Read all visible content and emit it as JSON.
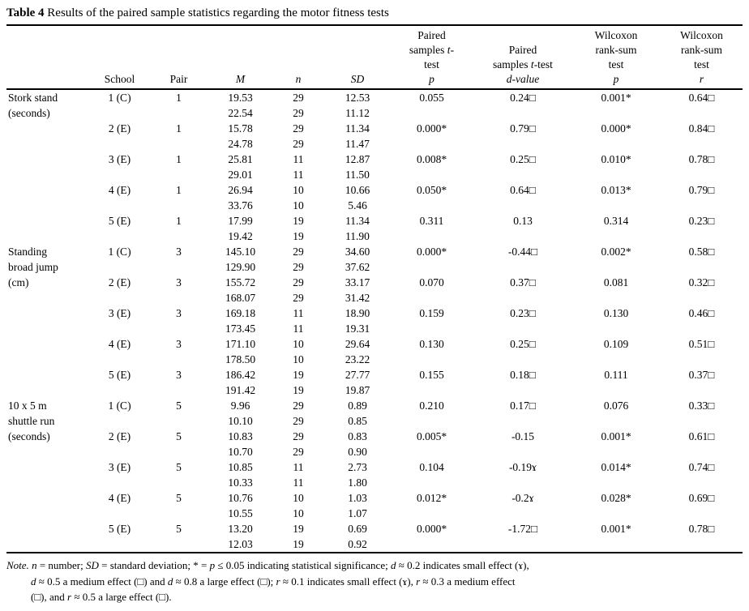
{
  "title": {
    "bold": "Table 4",
    "rest": " Results of the paired sample statistics regarding the motor fitness tests"
  },
  "table": {
    "columns": [
      {
        "key": "test",
        "top": [],
        "sub": [
          ""
        ]
      },
      {
        "key": "school",
        "top": [],
        "sub": [
          "School"
        ]
      },
      {
        "key": "pair",
        "top": [],
        "sub": [
          "Pair"
        ]
      },
      {
        "key": "m",
        "top": [],
        "sub": [
          {
            "i": "M"
          }
        ]
      },
      {
        "key": "n",
        "top": [],
        "sub": [
          {
            "i": "n"
          }
        ]
      },
      {
        "key": "sd",
        "top": [],
        "sub": [
          {
            "i": "SD"
          }
        ]
      },
      {
        "key": "paired-p",
        "top": [
          [
            "Paired"
          ],
          [
            "samples ",
            {
              "i": "t"
            },
            "-"
          ],
          [
            "test"
          ]
        ],
        "sub": [
          {
            "i": "p"
          }
        ]
      },
      {
        "key": "d-value",
        "top": [
          [
            "Paired"
          ],
          [
            "samples ",
            {
              "i": "t"
            },
            "-test"
          ]
        ],
        "sub": [
          {
            "i": "d-value"
          }
        ]
      },
      {
        "key": "wilcoxon-p",
        "top": [
          [
            "Wilcoxon"
          ],
          [
            "rank-sum"
          ],
          [
            "test"
          ]
        ],
        "sub": [
          {
            "i": "p"
          }
        ]
      },
      {
        "key": "wilcoxon-r",
        "top": [
          [
            "Wilcoxon"
          ],
          [
            "rank-sum"
          ],
          [
            "test"
          ]
        ],
        "sub": [
          {
            "i": "r"
          }
        ]
      }
    ],
    "sections": [
      {
        "test_lines": [
          "Stork stand",
          "(seconds)"
        ],
        "groups": [
          {
            "school": "1 (C)",
            "pair": "1",
            "rows": [
              [
                "19.53",
                "29",
                "12.53"
              ],
              [
                "22.54",
                "29",
                "11.12"
              ]
            ],
            "paired_p": "0.055",
            "d_value": "0.24□",
            "wilcoxon_p": "0.001*",
            "wilcoxon_r": "0.64□"
          },
          {
            "school": "2 (E)",
            "pair": "1",
            "rows": [
              [
                "15.78",
                "29",
                "11.34"
              ],
              [
                "24.78",
                "29",
                "11.47"
              ]
            ],
            "paired_p": "0.000*",
            "d_value": "0.79□",
            "wilcoxon_p": "0.000*",
            "wilcoxon_r": "0.84□"
          },
          {
            "school": "3 (E)",
            "pair": "1",
            "rows": [
              [
                "25.81",
                "11",
                "12.87"
              ],
              [
                "29.01",
                "11",
                "11.50"
              ]
            ],
            "paired_p": "0.008*",
            "d_value": "0.25□",
            "wilcoxon_p": "0.010*",
            "wilcoxon_r": "0.78□"
          },
          {
            "school": "4 (E)",
            "pair": "1",
            "rows": [
              [
                "26.94",
                "10",
                "10.66"
              ],
              [
                "33.76",
                "10",
                "5.46"
              ]
            ],
            "paired_p": "0.050*",
            "d_value": "0.64□",
            "wilcoxon_p": "0.013*",
            "wilcoxon_r": "0.79□"
          },
          {
            "school": "5 (E)",
            "pair": "1",
            "rows": [
              [
                "17.99",
                "19",
                "11.34"
              ],
              [
                "19.42",
                "19",
                "11.90"
              ]
            ],
            "paired_p": "0.311",
            "d_value": "0.13",
            "wilcoxon_p": "0.314",
            "wilcoxon_r": "0.23□"
          }
        ]
      },
      {
        "test_lines": [
          "Standing",
          "broad jump",
          "(cm)"
        ],
        "groups": [
          {
            "school": "1 (C)",
            "pair": "3",
            "rows": [
              [
                "145.10",
                "29",
                "34.60"
              ],
              [
                "129.90",
                "29",
                "37.62"
              ]
            ],
            "paired_p": "0.000*",
            "d_value": "-0.44□",
            "wilcoxon_p": "0.002*",
            "wilcoxon_r": "0.58□"
          },
          {
            "school": "2 (E)",
            "pair": "3",
            "rows": [
              [
                "155.72",
                "29",
                "33.17"
              ],
              [
                "168.07",
                "29",
                "31.42"
              ]
            ],
            "paired_p": "0.070",
            "d_value": "0.37□",
            "wilcoxon_p": "0.081",
            "wilcoxon_r": "0.32□"
          },
          {
            "school": "3 (E)",
            "pair": "3",
            "rows": [
              [
                "169.18",
                "11",
                "18.90"
              ],
              [
                "173.45",
                "11",
                "19.31"
              ]
            ],
            "paired_p": "0.159",
            "d_value": "0.23□",
            "wilcoxon_p": "0.130",
            "wilcoxon_r": "0.46□"
          },
          {
            "school": "4 (E)",
            "pair": "3",
            "rows": [
              [
                "171.10",
                "10",
                "29.64"
              ],
              [
                "178.50",
                "10",
                "23.22"
              ]
            ],
            "paired_p": "0.130",
            "d_value": "0.25□",
            "wilcoxon_p": "0.109",
            "wilcoxon_r": "0.51□"
          },
          {
            "school": "5 (E)",
            "pair": "3",
            "rows": [
              [
                "186.42",
                "19",
                "27.77"
              ],
              [
                "191.42",
                "19",
                "19.87"
              ]
            ],
            "paired_p": "0.155",
            "d_value": "0.18□",
            "wilcoxon_p": "0.111",
            "wilcoxon_r": "0.37□"
          }
        ]
      },
      {
        "test_lines": [
          "10 x 5 m",
          "shuttle run",
          "(seconds)"
        ],
        "groups": [
          {
            "school": "1 (C)",
            "pair": "5",
            "rows": [
              [
                "9.96",
                "29",
                "0.89"
              ],
              [
                "10.10",
                "29",
                "0.85"
              ]
            ],
            "paired_p": "0.210",
            "d_value": "0.17□",
            "wilcoxon_p": "0.076",
            "wilcoxon_r": "0.33□"
          },
          {
            "school": "2 (E)",
            "pair": "5",
            "rows": [
              [
                "10.83",
                "29",
                "0.83"
              ],
              [
                "10.70",
                "29",
                "0.90"
              ]
            ],
            "paired_p": "0.005*",
            "d_value": "-0.15",
            "wilcoxon_p": "0.001*",
            "wilcoxon_r": "0.61□"
          },
          {
            "school": "3 (E)",
            "pair": "5",
            "rows": [
              [
                "10.85",
                "11",
                "2.73"
              ],
              [
                "10.33",
                "11",
                "1.80"
              ]
            ],
            "paired_p": "0.104",
            "d_value": "-0.19ɤ",
            "wilcoxon_p": "0.014*",
            "wilcoxon_r": "0.74□"
          },
          {
            "school": "4 (E)",
            "pair": "5",
            "rows": [
              [
                "10.76",
                "10",
                "1.03"
              ],
              [
                "10.55",
                "10",
                "1.07"
              ]
            ],
            "paired_p": "0.012*",
            "d_value": "-0.2ɤ",
            "wilcoxon_p": "0.028*",
            "wilcoxon_r": "0.69□"
          },
          {
            "school": "5 (E)",
            "pair": "5",
            "rows": [
              [
                "13.20",
                "19",
                "0.69"
              ],
              [
                "12.03",
                "19",
                "0.92"
              ]
            ],
            "paired_p": "0.000*",
            "d_value": "-1.72□",
            "wilcoxon_p": "0.001*",
            "wilcoxon_r": "0.78□"
          }
        ]
      }
    ]
  },
  "note": {
    "lines": [
      [
        {
          "i": "Note."
        },
        " ",
        {
          "i": "n"
        },
        " = number; ",
        {
          "i": "SD"
        },
        " = standard deviation; * = ",
        {
          "i": "p"
        },
        " ≤ 0.05 indicating statistical significance; ",
        {
          "i": "d"
        },
        " ≈ 0.2 indicates small effect (ɤ),"
      ],
      [
        {
          "i": "d"
        },
        " ≈ 0.5 a medium effect (□) and ",
        {
          "i": "d"
        },
        " ≈ 0.8 a large effect (□); ",
        {
          "i": "r"
        },
        " ≈ 0.1 indicates small effect (ɤ), ",
        {
          "i": "r"
        },
        " ≈ 0.3 a medium effect"
      ],
      [
        "(□), and ",
        {
          "i": "r"
        },
        " ≈ 0.5 a large effect (□)."
      ]
    ]
  }
}
